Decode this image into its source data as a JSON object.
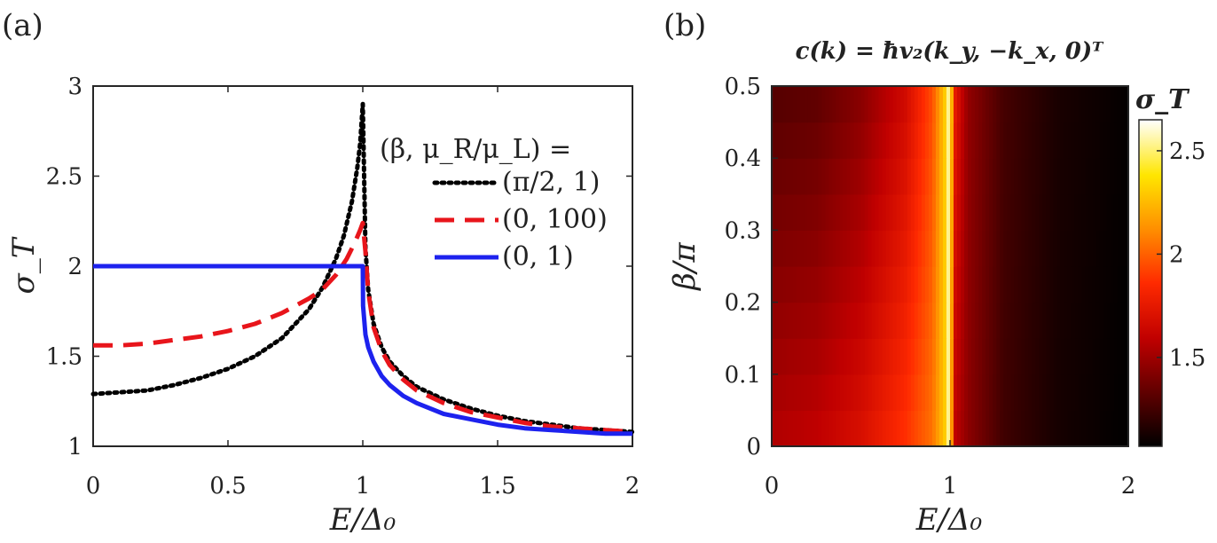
{
  "panel_a": {
    "label": "(a)"
  },
  "panel_b": {
    "label": "(b)"
  },
  "chart_data": [
    {
      "type": "line",
      "panel": "(a)",
      "xlabel": "E/Δ₀",
      "ylabel": "σ_T",
      "xlim": [
        0,
        2
      ],
      "ylim": [
        1,
        3
      ],
      "xticks": [
        "0",
        "0.5",
        "1",
        "1.5",
        "2"
      ],
      "yticks": [
        "1",
        "1.5",
        "2",
        "2.5",
        "3"
      ],
      "legend_title": "(β, μ_R/μ_L) =",
      "legend_position": "top-right",
      "series": [
        {
          "name": "(π/2, 1)",
          "style": "dotted",
          "color": "#000000",
          "x": [
            0,
            0.1,
            0.2,
            0.3,
            0.4,
            0.5,
            0.6,
            0.7,
            0.8,
            0.85,
            0.9,
            0.93,
            0.96,
            0.98,
            0.99,
            1.0,
            1.01,
            1.02,
            1.04,
            1.07,
            1.1,
            1.15,
            1.2,
            1.3,
            1.4,
            1.5,
            1.6,
            1.7,
            1.8,
            1.9,
            2.0
          ],
          "y": [
            1.29,
            1.3,
            1.31,
            1.34,
            1.38,
            1.43,
            1.5,
            1.6,
            1.76,
            1.88,
            2.04,
            2.17,
            2.36,
            2.55,
            2.68,
            2.9,
            2.1,
            1.87,
            1.68,
            1.55,
            1.47,
            1.39,
            1.33,
            1.26,
            1.21,
            1.17,
            1.14,
            1.12,
            1.1,
            1.09,
            1.08
          ]
        },
        {
          "name": "(0, 100)",
          "style": "dashed",
          "color": "#e8151b",
          "x": [
            0,
            0.1,
            0.2,
            0.3,
            0.4,
            0.5,
            0.6,
            0.7,
            0.8,
            0.85,
            0.9,
            0.94,
            0.97,
            0.99,
            1.0,
            1.01,
            1.02,
            1.04,
            1.07,
            1.1,
            1.15,
            1.2,
            1.3,
            1.4,
            1.5,
            1.6,
            1.7,
            1.8,
            1.9,
            2.0
          ],
          "y": [
            1.56,
            1.56,
            1.57,
            1.59,
            1.61,
            1.64,
            1.68,
            1.74,
            1.82,
            1.87,
            1.95,
            2.04,
            2.13,
            2.2,
            2.24,
            2.08,
            1.86,
            1.66,
            1.53,
            1.45,
            1.37,
            1.31,
            1.24,
            1.19,
            1.16,
            1.13,
            1.11,
            1.1,
            1.09,
            1.08
          ]
        },
        {
          "name": "(0, 1)",
          "style": "solid",
          "color": "#1d22ee",
          "x": [
            0,
            0.2,
            0.4,
            0.6,
            0.8,
            0.9,
            0.95,
            0.99,
            1.0,
            1.001,
            1.01,
            1.02,
            1.04,
            1.07,
            1.1,
            1.15,
            1.2,
            1.3,
            1.4,
            1.5,
            1.6,
            1.7,
            1.8,
            1.9,
            2.0
          ],
          "y": [
            2.0,
            2.0,
            2.0,
            2.0,
            2.0,
            2.0,
            2.0,
            2.0,
            2.0,
            1.78,
            1.62,
            1.55,
            1.47,
            1.39,
            1.34,
            1.28,
            1.24,
            1.18,
            1.15,
            1.12,
            1.1,
            1.09,
            1.08,
            1.07,
            1.07
          ]
        }
      ]
    },
    {
      "type": "heatmap",
      "panel": "(b)",
      "title": "c(k) = ħv₂(k_y, −k_x, 0)ᵀ",
      "xlabel": "E/Δ₀",
      "ylabel": "β/π",
      "xlim": [
        0,
        2
      ],
      "ylim": [
        0,
        0.5
      ],
      "xticks": [
        "0",
        "1",
        "2"
      ],
      "yticks": [
        "0",
        "0.1",
        "0.2",
        "0.3",
        "0.4",
        "0.5"
      ],
      "colorbar_label": "σ_T",
      "colorbar_range": [
        1.07,
        2.65
      ],
      "colorbar_ticks": [
        "1.5",
        "2",
        "2.5"
      ],
      "colormap": "hot",
      "description_values": {
        "E_samples": [
          0,
          0.25,
          0.5,
          0.75,
          0.9,
          0.97,
          1.0,
          1.02,
          1.1,
          1.3,
          1.6,
          2.0
        ],
        "sigma_at_beta0": [
          1.56,
          1.6,
          1.7,
          1.88,
          2.05,
          2.3,
          2.65,
          1.6,
          1.45,
          1.24,
          1.13,
          1.07
        ],
        "sigma_at_beta_half": [
          1.29,
          1.32,
          1.43,
          1.65,
          1.95,
          2.3,
          2.65,
          1.8,
          1.47,
          1.26,
          1.14,
          1.08
        ]
      }
    }
  ]
}
